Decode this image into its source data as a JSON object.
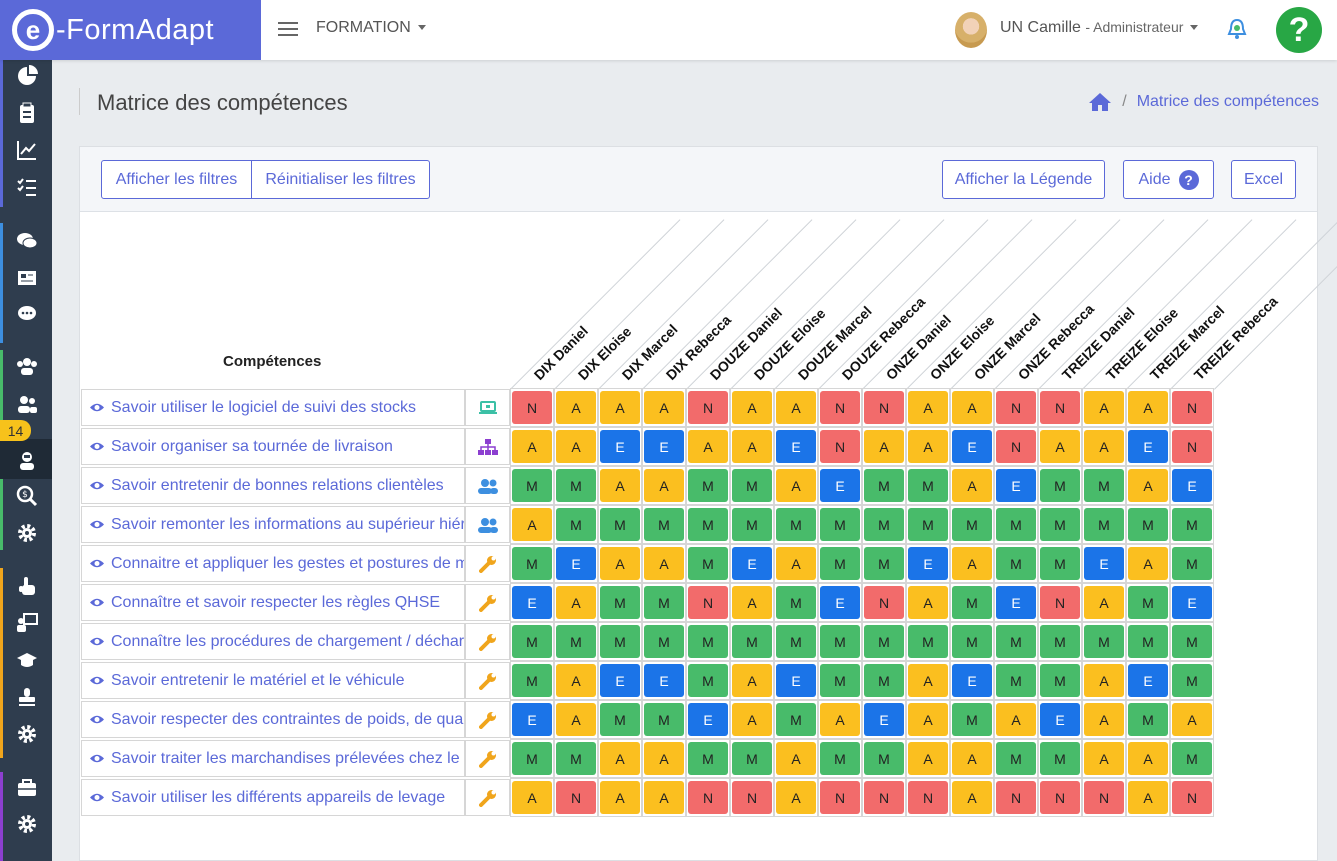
{
  "topbar": {
    "logo_e": "e",
    "logo_text": "-FormAdapt",
    "menu": "FORMATION",
    "user_name": "UN Camille",
    "user_role": "- Administrateur",
    "help": "?"
  },
  "sidebar": {
    "badge": "14"
  },
  "page": {
    "title": "Matrice des compétences",
    "breadcrumb": "Matrice des compétences"
  },
  "toolbar": {
    "show_filters": "Afficher les filtres",
    "reset_filters": "Réinitialiser les filtres",
    "show_legend": "Afficher la Légende",
    "help": "Aide",
    "excel": "Excel"
  },
  "matrix": {
    "header": "Compétences",
    "columns": [
      "DIX Daniel",
      "DIX Eloise",
      "DIX Marcel",
      "DIX Rebecca",
      "DOUZE Daniel",
      "DOUZE Eloise",
      "DOUZE Marcel",
      "DOUZE Rebecca",
      "ONZE Daniel",
      "ONZE Eloise",
      "ONZE Marcel",
      "ONZE Rebecca",
      "TREIZE Daniel",
      "TREIZE Eloise",
      "TREIZE Marcel",
      "TREIZE Rebecca"
    ],
    "level_colors": {
      "N": "#f26b6b",
      "A": "#fbbf1f",
      "M": "#48bb6a",
      "E": "#1b74e8"
    },
    "type_colors": {
      "laptop": "#3cc0a6",
      "sitemap": "#8c3fd0",
      "users": "#3d8fe0",
      "wrench": "#f0a51c"
    },
    "rows": [
      {
        "label": "Savoir utiliser le logiciel de suivi des stocks",
        "type": "laptop",
        "values": [
          "N",
          "A",
          "A",
          "A",
          "N",
          "A",
          "A",
          "N",
          "N",
          "A",
          "A",
          "N",
          "N",
          "A",
          "A",
          "N"
        ]
      },
      {
        "label": "Savoir organiser sa tournée de livraison",
        "type": "sitemap",
        "values": [
          "A",
          "A",
          "E",
          "E",
          "A",
          "A",
          "E",
          "N",
          "A",
          "A",
          "E",
          "N",
          "A",
          "A",
          "E",
          "N"
        ]
      },
      {
        "label": "Savoir entretenir de bonnes relations clientèles",
        "type": "users",
        "values": [
          "M",
          "M",
          "A",
          "A",
          "M",
          "M",
          "A",
          "E",
          "M",
          "M",
          "A",
          "E",
          "M",
          "M",
          "A",
          "E"
        ]
      },
      {
        "label": "Savoir remonter les informations au supérieur hiéra",
        "type": "users",
        "values": [
          "A",
          "M",
          "M",
          "M",
          "M",
          "M",
          "M",
          "M",
          "M",
          "M",
          "M",
          "M",
          "M",
          "M",
          "M",
          "M"
        ]
      },
      {
        "label": "Connaitre et appliquer les gestes et postures de ma",
        "type": "wrench",
        "values": [
          "M",
          "E",
          "A",
          "A",
          "M",
          "E",
          "A",
          "M",
          "M",
          "E",
          "A",
          "M",
          "M",
          "E",
          "A",
          "M"
        ]
      },
      {
        "label": "Connaître et savoir respecter les règles QHSE",
        "type": "wrench",
        "values": [
          "E",
          "A",
          "M",
          "M",
          "N",
          "A",
          "M",
          "E",
          "N",
          "A",
          "M",
          "E",
          "N",
          "A",
          "M",
          "E"
        ]
      },
      {
        "label": "Connaître les procédures de chargement / décharg",
        "type": "wrench",
        "values": [
          "M",
          "M",
          "M",
          "M",
          "M",
          "M",
          "M",
          "M",
          "M",
          "M",
          "M",
          "M",
          "M",
          "M",
          "M",
          "M"
        ]
      },
      {
        "label": "Savoir entretenir le matériel et le véhicule",
        "type": "wrench",
        "values": [
          "M",
          "A",
          "E",
          "E",
          "M",
          "A",
          "E",
          "M",
          "M",
          "A",
          "E",
          "M",
          "M",
          "A",
          "E",
          "M"
        ]
      },
      {
        "label": "Savoir respecter des contraintes de poids, de quan",
        "type": "wrench",
        "values": [
          "E",
          "A",
          "M",
          "M",
          "E",
          "A",
          "M",
          "A",
          "E",
          "A",
          "M",
          "A",
          "E",
          "A",
          "M",
          "A"
        ]
      },
      {
        "label": "Savoir traiter les marchandises prélevées chez le c",
        "type": "wrench",
        "values": [
          "M",
          "M",
          "A",
          "A",
          "M",
          "M",
          "A",
          "M",
          "M",
          "A",
          "A",
          "M",
          "M",
          "A",
          "A",
          "M"
        ]
      },
      {
        "label": "Savoir utiliser les différents appareils de levage",
        "type": "wrench",
        "values": [
          "A",
          "N",
          "A",
          "A",
          "N",
          "N",
          "A",
          "N",
          "N",
          "N",
          "A",
          "N",
          "N",
          "N",
          "A",
          "N"
        ]
      }
    ]
  }
}
